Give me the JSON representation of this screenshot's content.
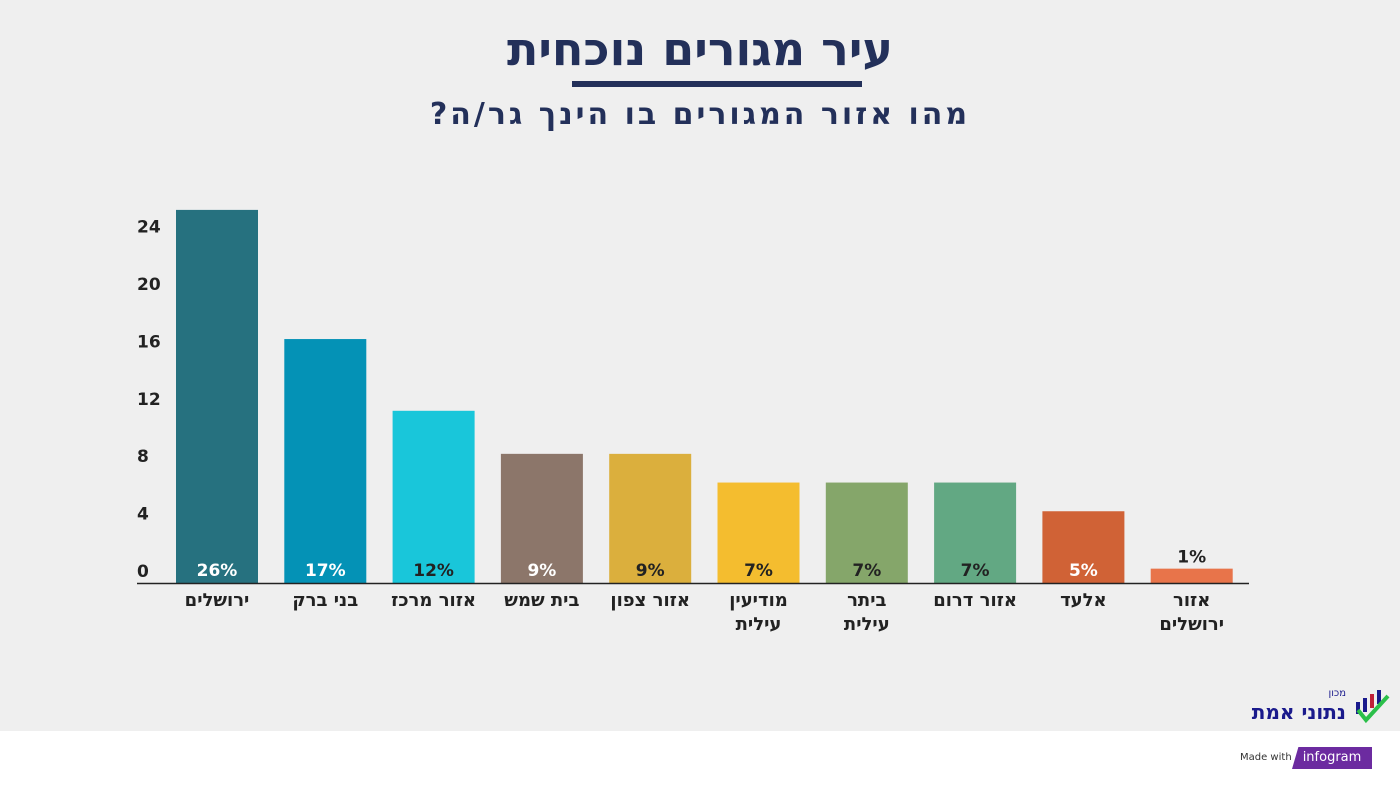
{
  "header": {
    "title": "עיר מגורים נוכחית",
    "subtitle": "מהו אזור המגורים בו הינך גר/ה?"
  },
  "chart_data": {
    "type": "bar",
    "title": "עיר מגורים נוכחית",
    "subtitle": "מהו אזור המגורים בו הינך גר/ה?",
    "categories": [
      "ירושלים",
      "בני ברק",
      "אזור מרכז",
      "בית שמש",
      "אזור צפון",
      "מודיעין עילית",
      "ביתר עילית",
      "אזור דרום",
      "אלעד",
      "אזור ירושלים"
    ],
    "values": [
      26,
      17,
      12,
      9,
      9,
      7,
      7,
      7,
      5,
      1
    ],
    "data_labels": [
      "26%",
      "17%",
      "12%",
      "9%",
      "9%",
      "7%",
      "7%",
      "7%",
      "5%",
      "1%"
    ],
    "colors": [
      "#26717f",
      "#0492b6",
      "#19c6da",
      "#8c766a",
      "#dbaf3d",
      "#f4bd2f",
      "#85a66a",
      "#62a883",
      "#d06236",
      "#e8744a"
    ],
    "label_colors": [
      "#ffffff",
      "#ffffff",
      "#222222",
      "#ffffff",
      "#222222",
      "#222222",
      "#222222",
      "#222222",
      "#ffffff",
      "#222222"
    ],
    "yticks": [
      0,
      4,
      8,
      12,
      16,
      20,
      24
    ],
    "ylim": [
      0,
      26
    ],
    "grid": false,
    "legend": "none"
  },
  "branding": {
    "logo_small": "מכון",
    "logo_main": "נתוני אמת",
    "made_with": "Made with",
    "infogram": "infogram"
  }
}
